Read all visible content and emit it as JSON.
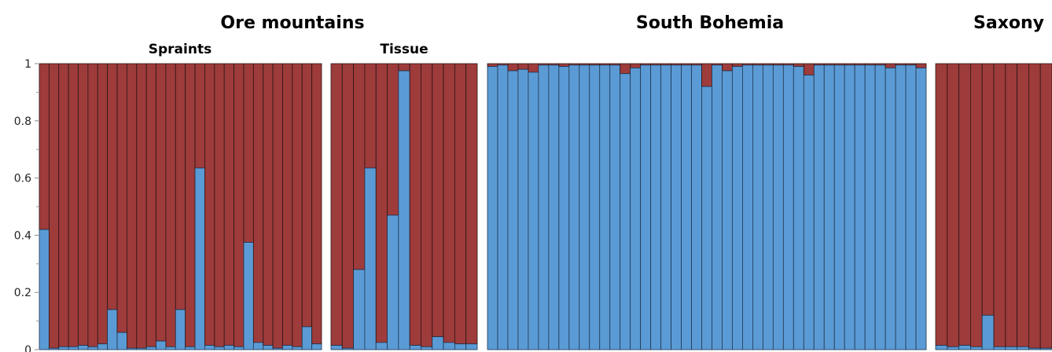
{
  "chart_data": {
    "type": "bar",
    "stacked": true,
    "ylim": [
      0,
      1
    ],
    "yticks": [
      "0",
      "0.2",
      "0.4",
      "0.6",
      "0.8",
      "1"
    ],
    "grid": false,
    "colors": {
      "cluster_blue": "#5b9bd5",
      "cluster_red": "#9e3b3b"
    },
    "population_titles": [
      "Ore mountains",
      "South Bohemia",
      "Saxony"
    ],
    "panels": [
      {
        "population": "Ore mountains",
        "subtitle": "Spraints",
        "blue_values": [
          0.42,
          0.005,
          0.01,
          0.01,
          0.015,
          0.01,
          0.02,
          0.14,
          0.06,
          0.005,
          0.005,
          0.01,
          0.03,
          0.01,
          0.14,
          0.01,
          0.635,
          0.015,
          0.01,
          0.015,
          0.01,
          0.375,
          0.025,
          0.015,
          0.005,
          0.015,
          0.01,
          0.08,
          0.02
        ]
      },
      {
        "population": "Ore mountains",
        "subtitle": "Tissue",
        "blue_values": [
          0.015,
          0.005,
          0.28,
          0.635,
          0.025,
          0.47,
          0.975,
          0.015,
          0.01,
          0.045,
          0.025,
          0.02,
          0.02
        ]
      },
      {
        "population": "South Bohemia",
        "subtitle": "",
        "blue_values": [
          0.99,
          0.995,
          0.975,
          0.98,
          0.97,
          0.995,
          0.995,
          0.99,
          0.995,
          0.995,
          0.995,
          0.995,
          0.995,
          0.965,
          0.985,
          0.995,
          0.995,
          0.995,
          0.995,
          0.995,
          0.995,
          0.92,
          0.995,
          0.975,
          0.99,
          0.995,
          0.995,
          0.995,
          0.995,
          0.995,
          0.99,
          0.96,
          0.995,
          0.995,
          0.995,
          0.995,
          0.995,
          0.995,
          0.995,
          0.985,
          0.995,
          0.995,
          0.985
        ]
      },
      {
        "population": "Saxony",
        "subtitle": "",
        "blue_values": [
          0.015,
          0.01,
          0.015,
          0.01,
          0.12,
          0.01,
          0.01,
          0.01,
          0.005,
          0.005
        ]
      }
    ]
  }
}
